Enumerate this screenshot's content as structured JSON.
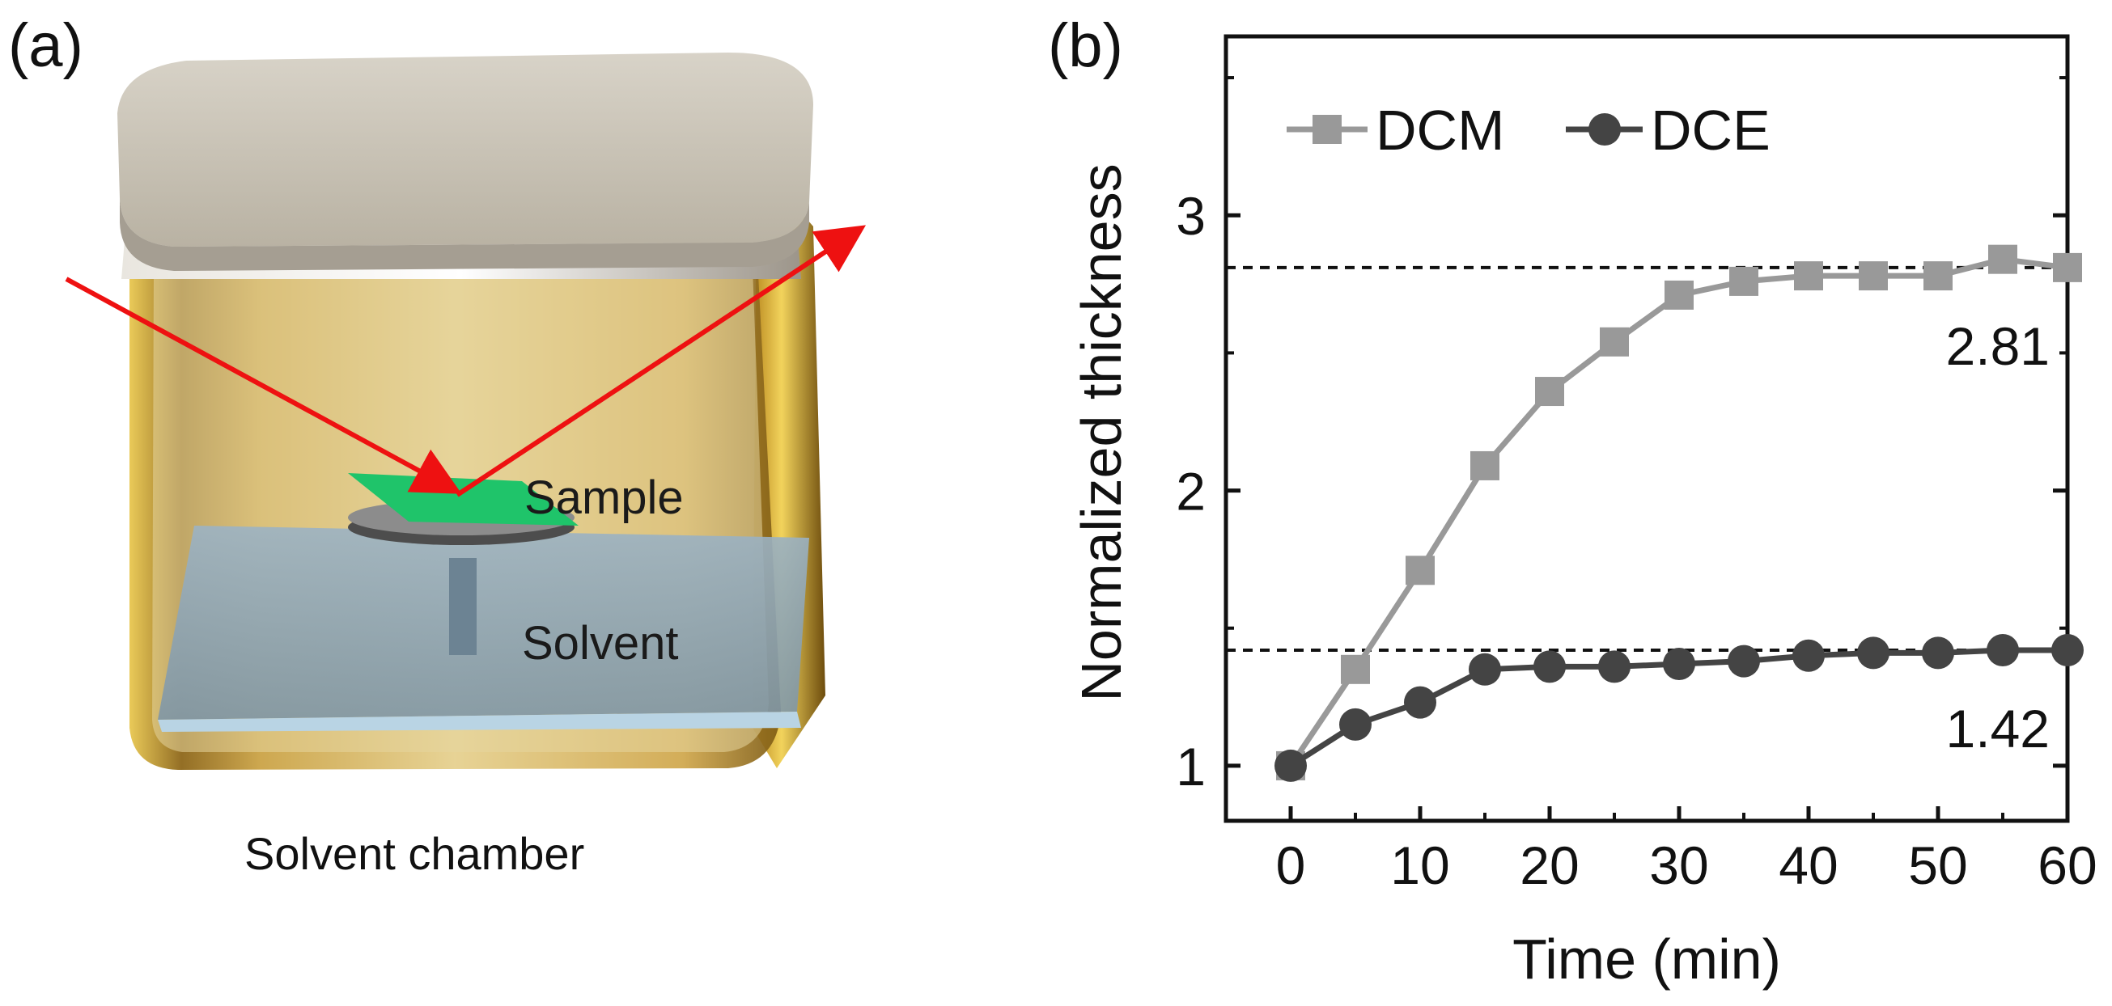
{
  "panel_a": {
    "label": "(a)",
    "caption": "Solvent chamber",
    "sample_label": "Sample",
    "solvent_label": "Solvent",
    "colors": {
      "lid": "#cbc5b8",
      "chamber": "#c7a23a",
      "sample": "#1fc46a",
      "solvent": "#8fa7b8",
      "beam": "#ee1111"
    }
  },
  "panel_b": {
    "label": "(b)"
  },
  "chart_data": {
    "type": "line",
    "title": "",
    "xlabel": "Time (min)",
    "ylabel": "Normalized thickness",
    "xlim": [
      -5,
      60
    ],
    "ylim": [
      0.8,
      3.65
    ],
    "xticks": [
      0,
      10,
      20,
      30,
      40,
      50,
      60
    ],
    "xtick_labels": [
      "0",
      "10",
      "20",
      "30",
      "40",
      "50",
      "60"
    ],
    "yticks": [
      1,
      2,
      3
    ],
    "ytick_labels": [
      "1",
      "2",
      "3"
    ],
    "legend_position": "top-left",
    "series": [
      {
        "name": "DCM",
        "marker": "square",
        "color": "#999999",
        "x": [
          0,
          5,
          10,
          15,
          20,
          25,
          30,
          35,
          40,
          45,
          50,
          55,
          60
        ],
        "y": [
          1.0,
          1.35,
          1.71,
          2.09,
          2.36,
          2.54,
          2.71,
          2.76,
          2.78,
          2.78,
          2.78,
          2.84,
          2.81
        ]
      },
      {
        "name": "DCE",
        "marker": "circle",
        "color": "#444444",
        "x": [
          0,
          5,
          10,
          15,
          20,
          25,
          30,
          35,
          40,
          45,
          50,
          55,
          60
        ],
        "y": [
          1.0,
          1.15,
          1.23,
          1.35,
          1.36,
          1.36,
          1.37,
          1.38,
          1.4,
          1.41,
          1.41,
          1.42,
          1.42
        ]
      }
    ],
    "reference_lines": [
      {
        "y": 2.81,
        "label": "2.81",
        "style": "dashed"
      },
      {
        "y": 1.42,
        "label": "1.42",
        "style": "dashed"
      }
    ]
  }
}
